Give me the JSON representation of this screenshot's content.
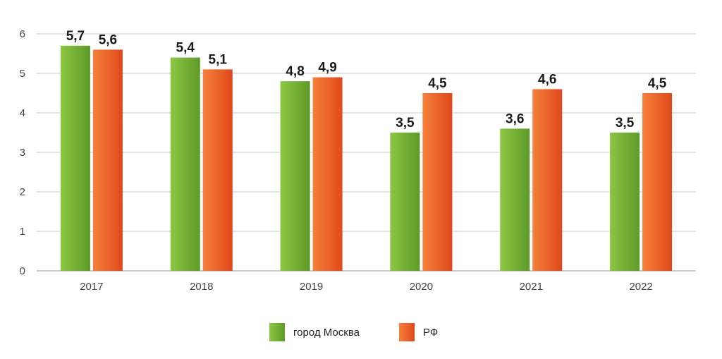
{
  "chart_data": {
    "type": "bar",
    "categories": [
      "2017",
      "2018",
      "2019",
      "2020",
      "2021",
      "2022"
    ],
    "series": [
      {
        "name": "город Москва",
        "values": [
          5.7,
          5.4,
          4.8,
          3.5,
          3.6,
          3.5
        ],
        "labels": [
          "5,7",
          "5,4",
          "4,8",
          "3,5",
          "3,6",
          "3,5"
        ],
        "color": "#7dbb3c",
        "color_dark": "#5e9a28"
      },
      {
        "name": "РФ",
        "values": [
          5.6,
          5.1,
          4.9,
          4.5,
          4.6,
          4.5
        ],
        "labels": [
          "5,6",
          "5,1",
          "4,9",
          "4,5",
          "4,6",
          "4,5"
        ],
        "color": "#f26a2e",
        "color_dark": "#e0481c"
      }
    ],
    "yticks": [
      "0",
      "1",
      "2",
      "3",
      "4",
      "5",
      "6"
    ],
    "ylim": [
      0,
      6
    ],
    "grid": true,
    "legend_position": "bottom-center",
    "title": "",
    "xlabel": "",
    "ylabel": ""
  },
  "legend": {
    "items": [
      {
        "label": "город Москва",
        "color": "#7dbb3c"
      },
      {
        "label": "РФ",
        "color": "#f26a2e"
      }
    ]
  }
}
